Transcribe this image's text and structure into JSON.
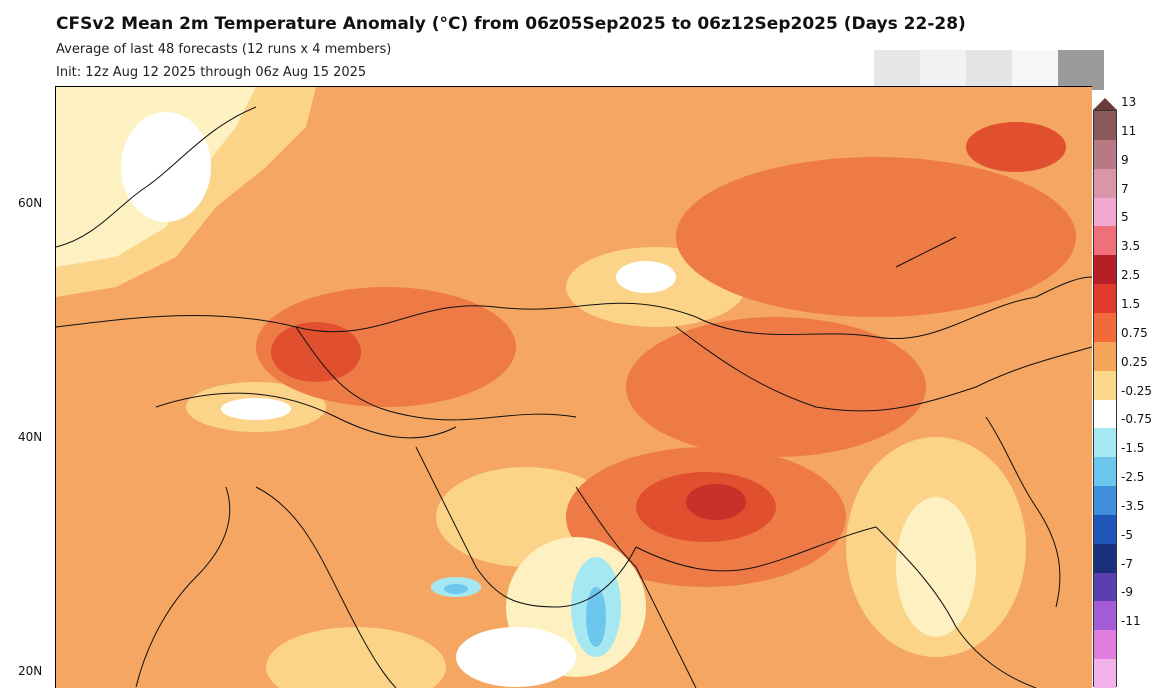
{
  "header": {
    "title": "CFSv2 Mean 2m Temperature Anomaly (°C) from 06z05Sep2025 to 06z12Sep2025 (Days 22-28)",
    "subtitle1": "Average of last 48 forecasts (12 runs x 4 members)",
    "subtitle2": "Init: 12z Aug 12 2025 through 06z Aug 15 2025"
  },
  "lat_labels": [
    "60N",
    "40N",
    "20N"
  ],
  "colorbar": {
    "labels": [
      "13",
      "11",
      "9",
      "7",
      "5",
      "3.5",
      "2.5",
      "1.5",
      "0.75",
      "0.25",
      "-0.25",
      "-0.75",
      "-1.5",
      "-2.5",
      "-3.5",
      "-5",
      "-7",
      "-9",
      "-11"
    ],
    "colors": [
      "#8a5a5a",
      "#b77a84",
      "#d996a8",
      "#f2a8d0",
      "#ef6f7a",
      "#b51f25",
      "#e03a2b",
      "#f06a3a",
      "#f6a55a",
      "#fbd98a",
      "#ffffff",
      "#a6e8f2",
      "#6cc6ee",
      "#3d8fdc",
      "#1f57b8",
      "#1b2f7a",
      "#5b3fb0",
      "#a45bd6",
      "#e07ee0",
      "#f2b2ea"
    ],
    "tip_color": "#6b3a3a"
  },
  "map_colors": {
    "base": "#f4a662",
    "light": "#fbd48a",
    "pale": "#fdf1c2",
    "white": "#ffffff",
    "warm": "#ee7a46",
    "hot": "#e0502e",
    "hotter": "#c8302a",
    "cold1": "#a6e8f2",
    "cold2": "#6cc6ee"
  }
}
